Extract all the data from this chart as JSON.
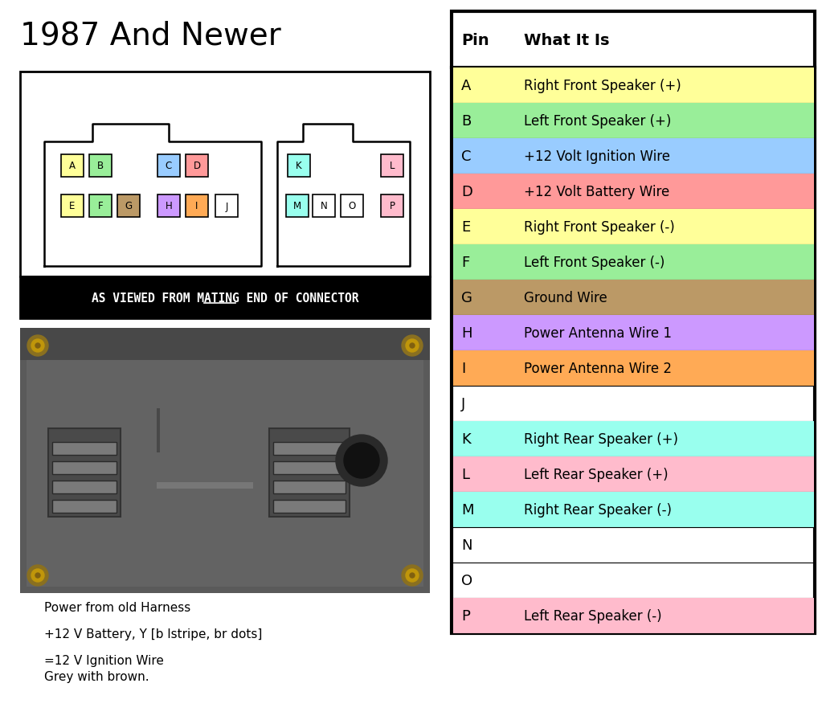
{
  "title": "1987 And Newer",
  "title_fontsize": 28,
  "bg_color": "#ffffff",
  "table_pins": [
    "A",
    "B",
    "C",
    "D",
    "E",
    "F",
    "G",
    "H",
    "I",
    "J",
    "K",
    "L",
    "M",
    "N",
    "O",
    "P"
  ],
  "table_descriptions": [
    "Right Front Speaker (+)",
    "Left Front Speaker (+)",
    "+12 Volt Ignition Wire",
    "+12 Volt Battery Wire",
    "Right Front Speaker (-)",
    "Left Front Speaker (-)",
    "Ground Wire",
    "Power Antenna Wire 1",
    "Power Antenna Wire 2",
    "",
    "Right Rear Speaker (+)",
    "Left Rear Speaker (+)",
    "Right Rear Speaker (-)",
    "",
    "",
    "Left Rear Speaker (-)"
  ],
  "table_colors": [
    "#ffff99",
    "#99ee99",
    "#99ccff",
    "#ff9999",
    "#ffff99",
    "#99ee99",
    "#bb9966",
    "#cc99ff",
    "#ffaa55",
    "#ffffff",
    "#99ffee",
    "#ffbbcc",
    "#99ffee",
    "#ffffff",
    "#ffffff",
    "#ffbbcc"
  ],
  "col_header_pin": "Pin",
  "col_header_desc": "What It Is",
  "bottom_notes_line1": "Power from old Harness",
  "bottom_notes_line2": "+12 V Battery, Y [b lstripe, br dots]",
  "bottom_notes_line3": "=12 V Ignition Wire",
  "bottom_notes_line4": "Grey with brown.",
  "connector_label": "AS VIEWED FROM MATING END OF CONNECTOR",
  "connector_pins_top_row": [
    {
      "label": "A",
      "color": "#ffff99"
    },
    {
      "label": "B",
      "color": "#99ee99"
    },
    {
      "label": "C",
      "color": "#99ccff"
    },
    {
      "label": "D",
      "color": "#ff9999"
    }
  ],
  "connector_pins_bottom_row": [
    {
      "label": "E",
      "color": "#ffff99"
    },
    {
      "label": "F",
      "color": "#99ee99"
    },
    {
      "label": "G",
      "color": "#bb9966"
    },
    {
      "label": "H",
      "color": "#cc99ff"
    },
    {
      "label": "I",
      "color": "#ffaa55"
    },
    {
      "label": "J",
      "color": "#ffffff"
    }
  ],
  "connector2_pins_top_row": [
    {
      "label": "K",
      "color": "#99ffee"
    },
    {
      "label": "L",
      "color": "#ffbbcc"
    }
  ],
  "connector2_pins_bottom_row": [
    {
      "label": "M",
      "color": "#99ffee"
    },
    {
      "label": "N",
      "color": "#ffffff"
    },
    {
      "label": "O",
      "color": "#ffffff"
    },
    {
      "label": "P",
      "color": "#ffbbcc"
    }
  ]
}
